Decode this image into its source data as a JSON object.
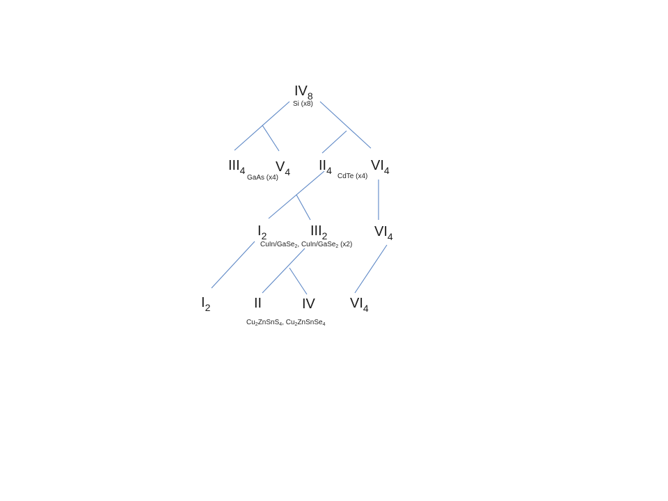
{
  "nodes": {
    "iv8": {
      "base": "IV",
      "sub": "8"
    },
    "iii4": {
      "base": "III",
      "sub": "4"
    },
    "v4": {
      "base": "V",
      "sub": "4"
    },
    "ii4": {
      "base": "II",
      "sub": "4"
    },
    "vi4_r2": {
      "base": "VI",
      "sub": "4"
    },
    "i2_r3": {
      "base": "I",
      "sub": "2"
    },
    "iii2": {
      "base": "III",
      "sub": "2"
    },
    "vi4_r3": {
      "base": "VI",
      "sub": "4"
    },
    "i2_r4": {
      "base": "I",
      "sub": "2"
    },
    "ii_r4": {
      "base": "II"
    },
    "iv_r4": {
      "base": "IV"
    },
    "vi4_r4": {
      "base": "VI",
      "sub": "4"
    }
  },
  "captions": {
    "si": "Si (x8)",
    "gaas": "GaAs (x4)",
    "cdte": "CdTe (x4)",
    "cigs": {
      "p1": "CuIn/GaSe",
      "s1": "2",
      "p2": ", CuIn/GaSe",
      "s2": "2",
      "p3": " (x2)"
    },
    "czts": {
      "p1": "Cu",
      "s1": "2",
      "p2": "ZnSnS",
      "s2": "4",
      "p3": ", Cu",
      "s3": "2",
      "p4": "ZnSnSe",
      "s4": "4"
    }
  },
  "colors": {
    "line": "#5b86c5"
  }
}
